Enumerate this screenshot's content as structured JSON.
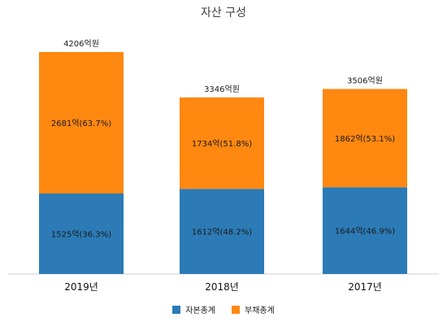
{
  "chart_data": {
    "type": "bar",
    "stacked": true,
    "title": "자산 구성",
    "categories": [
      "2019년",
      "2018년",
      "2017년"
    ],
    "series": [
      {
        "name": "자본총계",
        "color": "#2C7BB6",
        "values": [
          1525,
          1612,
          1644
        ],
        "labels": [
          "1525억(36.3%)",
          "1612억(48.2%)",
          "1644억(46.9%)"
        ]
      },
      {
        "name": "부채총계",
        "color": "#FF8811",
        "values": [
          2681,
          1734,
          1862
        ],
        "labels": [
          "2681억(63.7%)",
          "1734억(51.8%)",
          "1862억(53.1%)"
        ]
      }
    ],
    "totals": [
      4206,
      3346,
      3506
    ],
    "total_labels": [
      "4206억원",
      "3346억원",
      "3506억원"
    ],
    "ylim": [
      0,
      4206
    ],
    "legend_position": "bottom",
    "grid": false
  }
}
